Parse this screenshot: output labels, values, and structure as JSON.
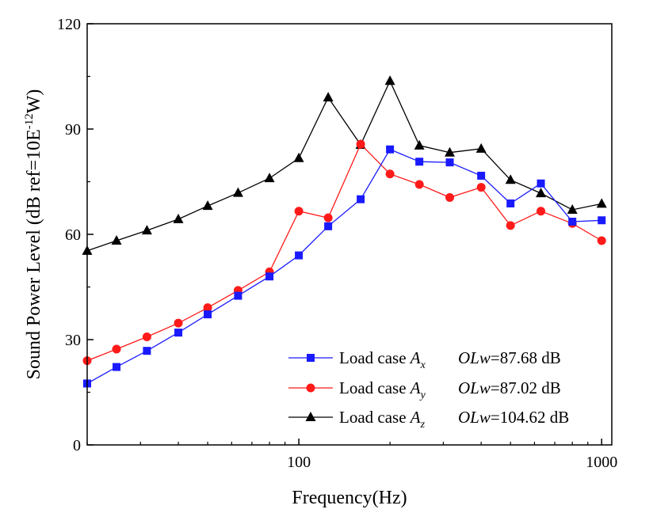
{
  "chart_data": {
    "type": "line",
    "xlabel": "Frequency(Hz)",
    "ylabel": "Sound Power Level (dB ref=10E",
    "ylabel_sup": "-12",
    "ylabel_tail": "W)",
    "x_scale": "log",
    "xlim": [
      20,
      1080
    ],
    "ylim": [
      0,
      120
    ],
    "x_ticks": [
      {
        "value": 100,
        "label": "100"
      },
      {
        "value": 1000,
        "label": "1000"
      }
    ],
    "y_ticks": [
      {
        "value": 0,
        "label": "0"
      },
      {
        "value": 30,
        "label": "30"
      },
      {
        "value": 60,
        "label": "60"
      },
      {
        "value": 90,
        "label": "90"
      },
      {
        "value": 120,
        "label": "120"
      }
    ],
    "grid": false,
    "legend_position": "bottom-right",
    "x": [
      20,
      25,
      31.5,
      40,
      50,
      63,
      80,
      100,
      125,
      160,
      200,
      250,
      315,
      400,
      500,
      630,
      800,
      1000
    ],
    "series": [
      {
        "legend_prefix": "Load case ",
        "legend_var": "A",
        "legend_sub": "x",
        "legend_olw": "OLw",
        "legend_value": "=87.68 dB",
        "color": "#1a1aff",
        "marker": "square",
        "values": [
          17.5,
          22.2,
          26.8,
          32.0,
          37.2,
          42.5,
          48.0,
          54.0,
          62.3,
          70.0,
          84.2,
          80.7,
          80.5,
          76.7,
          68.8,
          74.5,
          63.6,
          64.0
        ]
      },
      {
        "legend_prefix": "Load case ",
        "legend_var": "A",
        "legend_sub": "y",
        "legend_olw": "OLw",
        "legend_value": "=87.02 dB",
        "color": "#ff1a1a",
        "marker": "circle",
        "values": [
          24.0,
          27.3,
          30.8,
          34.7,
          39.1,
          44.0,
          49.3,
          66.6,
          64.7,
          85.7,
          77.2,
          74.2,
          70.5,
          73.4,
          62.5,
          66.6,
          63.1,
          58.2
        ]
      },
      {
        "legend_prefix": "Load case ",
        "legend_var": "A",
        "legend_sub": "z",
        "legend_olw": "OLw",
        "legend_value": "=104.62 dB",
        "color": "#000000",
        "marker": "triangle",
        "values": [
          55.3,
          58.2,
          61.1,
          64.3,
          68.1,
          71.8,
          76.0,
          81.7,
          99.0,
          85.5,
          103.7,
          85.3,
          83.3,
          84.4,
          75.5,
          71.7,
          67.0,
          68.7
        ]
      }
    ]
  }
}
